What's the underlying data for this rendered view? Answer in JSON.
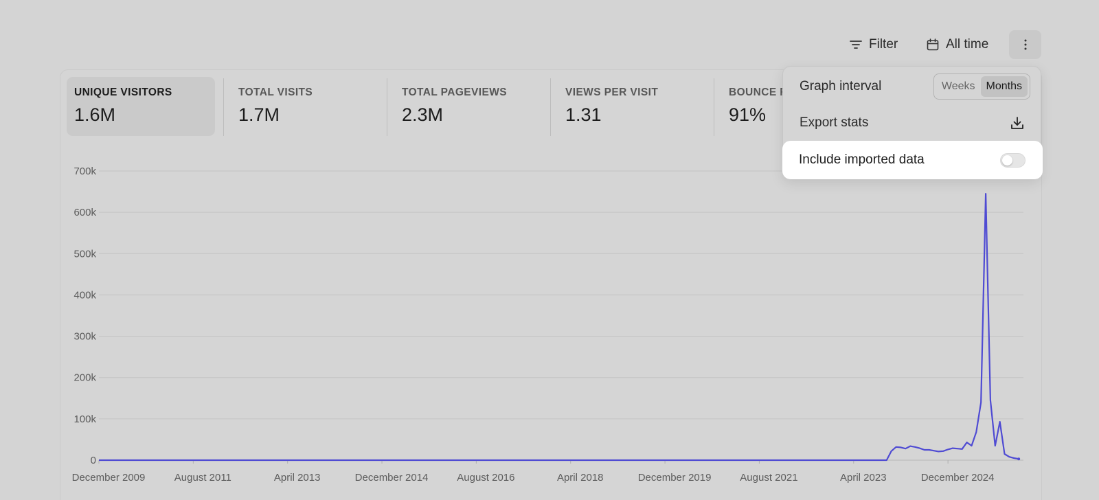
{
  "toolbar": {
    "filter_label": "Filter",
    "period_label": "All time",
    "filter_icon": "filter-icon",
    "calendar_icon": "calendar-icon",
    "more_icon": "more-vertical-icon"
  },
  "stats": [
    {
      "label": "UNIQUE VISITORS",
      "value": "1.6M",
      "active": true
    },
    {
      "label": "TOTAL VISITS",
      "value": "1.7M",
      "active": false
    },
    {
      "label": "TOTAL PAGEVIEWS",
      "value": "2.3M",
      "active": false
    },
    {
      "label": "VIEWS PER VISIT",
      "value": "1.31",
      "active": false
    },
    {
      "label": "BOUNCE R",
      "value": "91%",
      "active": false
    }
  ],
  "menu": {
    "interval_label": "Graph interval",
    "interval_options": [
      "Weeks",
      "Months"
    ],
    "interval_selected": "Months",
    "export_label": "Export stats",
    "export_icon": "download-icon",
    "imported_label": "Include imported data",
    "imported_enabled": false
  },
  "colors": {
    "line": "#4f4bd3",
    "background": "#d4d4d4",
    "grid": "#c4c4c4"
  },
  "chart_data": {
    "type": "line",
    "ylim": [
      0,
      700000
    ],
    "y_ticks": [
      "0",
      "100k",
      "200k",
      "300k",
      "400k",
      "500k",
      "600k",
      "700k"
    ],
    "x_tick_labels": [
      "December 2009",
      "August 2011",
      "April 2013",
      "December 2014",
      "August 2016",
      "April 2018",
      "December 2019",
      "August 2021",
      "April 2023",
      "December 2024"
    ],
    "grid": true,
    "series": [
      {
        "x": [
          "2009-12",
          "2023-11",
          "2023-12",
          "2024-01",
          "2024-02",
          "2024-03",
          "2024-04",
          "2024-05",
          "2024-06",
          "2024-07",
          "2024-08",
          "2024-09",
          "2024-10",
          "2024-11",
          "2024-12",
          "2025-01",
          "2025-02",
          "2025-03",
          "2025-04",
          "2025-05",
          "2025-06",
          "2025-07",
          "2025-08",
          "2025-09",
          "2025-10",
          "2025-11",
          "2025-12",
          "2026-01",
          "2026-02",
          "2026-03"
        ],
        "values": [
          0,
          0,
          22000,
          32000,
          31000,
          28000,
          34000,
          32000,
          29000,
          25000,
          25000,
          23000,
          21000,
          22000,
          26000,
          29000,
          28000,
          27000,
          43000,
          35000,
          68000,
          140000,
          645000,
          145000,
          35000,
          93000,
          15000,
          8000,
          5000,
          3000
        ]
      }
    ]
  }
}
